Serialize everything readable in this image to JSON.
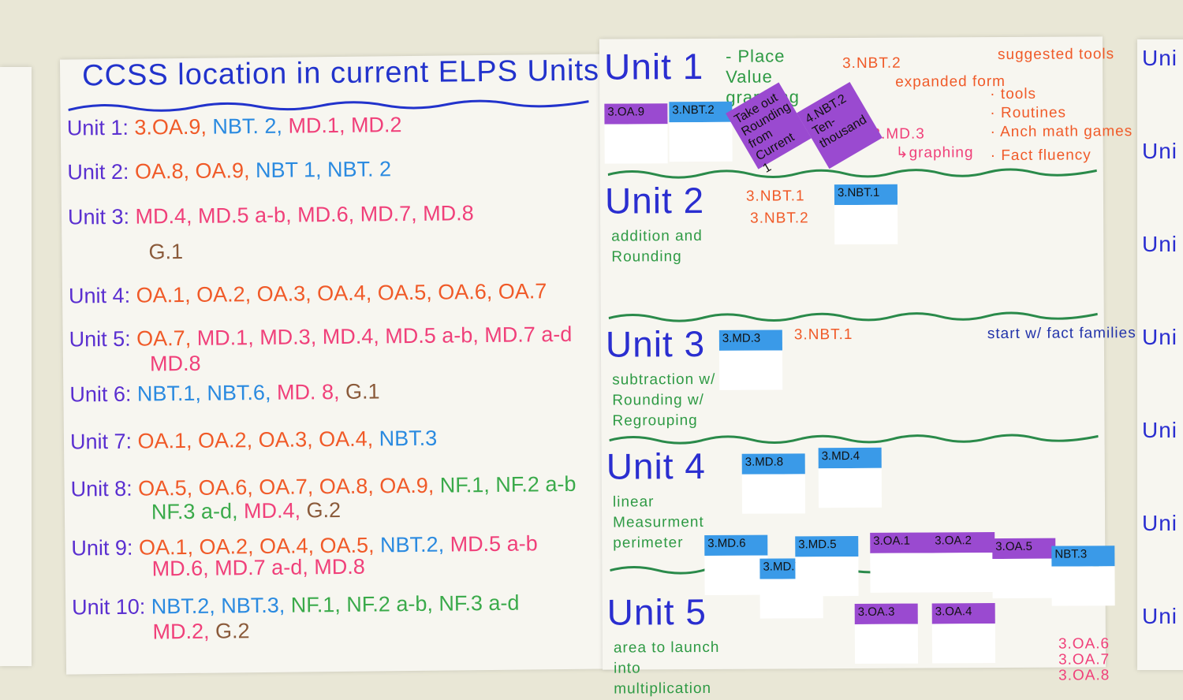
{
  "left": {
    "title": "CCSS location in current ELPS Units",
    "units": [
      {
        "label": "Unit 1:",
        "segs": [
          [
            "3.OA.9,",
            "#f05a28"
          ],
          [
            "NBT. 2,",
            "#2a8ae0"
          ],
          [
            "MD.1, MD.2",
            "#f0407a"
          ]
        ]
      },
      {
        "label": "Unit 2:",
        "segs": [
          [
            "OA.8, OA.9,",
            "#f05a28"
          ],
          [
            "NBT 1, NBT. 2",
            "#2a8ae0"
          ]
        ]
      },
      {
        "label": "Unit 3:",
        "segs": [
          [
            "MD.4, MD.5 a-b, MD.6, MD.7, MD.8",
            "#f0407a"
          ]
        ],
        "line2": [
          [
            "G.1",
            "#8a5a3a"
          ]
        ]
      },
      {
        "label": "Unit 4:",
        "segs": [
          [
            "OA.1, OA.2, OA.3, OA.4, OA.5, OA.6, OA.7",
            "#f05a28"
          ]
        ]
      },
      {
        "label": "Unit 5:",
        "segs": [
          [
            "OA.7,",
            "#f05a28"
          ],
          [
            "MD.1, MD.3, MD.4, MD.5 a-b, MD.7 a-d",
            "#f0407a"
          ]
        ],
        "line2": [
          [
            "MD.8",
            "#f0407a"
          ]
        ]
      },
      {
        "label": "Unit 6:",
        "segs": [
          [
            "NBT.1, NBT.6,",
            "#2a8ae0"
          ],
          [
            "MD. 8,",
            "#f0407a"
          ],
          [
            "G.1",
            "#8a5a3a"
          ]
        ]
      },
      {
        "label": "Unit 7:",
        "segs": [
          [
            "OA.1, OA.2, OA.3, OA.4,",
            "#f05a28"
          ],
          [
            "NBT.3",
            "#2a8ae0"
          ]
        ]
      },
      {
        "label": "Unit 8:",
        "segs": [
          [
            "OA.5, OA.6, OA.7, OA.8, OA.9,",
            "#f05a28"
          ],
          [
            "NF.1, NF.2 a-b",
            "#3aaa4a"
          ]
        ],
        "line2": [
          [
            "NF.3 a-d,",
            "#3aaa4a"
          ],
          [
            "MD.4,",
            "#f0407a"
          ],
          [
            "G.2",
            "#8a5a3a"
          ]
        ]
      },
      {
        "label": "Unit 9:",
        "segs": [
          [
            "OA.1, OA.2, OA.4, OA.5,",
            "#f05a28"
          ],
          [
            "NBT.2,",
            "#2a8ae0"
          ],
          [
            "MD.5 a-b",
            "#f0407a"
          ]
        ],
        "line2": [
          [
            "MD.6, MD.7 a-d, MD.8",
            "#f0407a"
          ]
        ]
      },
      {
        "label": "Unit 10:",
        "segs": [
          [
            "NBT.2, NBT.3,",
            "#2a8ae0"
          ],
          [
            "NF.1, NF.2 a-b, NF.3 a-d",
            "#3aaa4a"
          ]
        ],
        "line2": [
          [
            "MD.2,",
            "#f0407a"
          ],
          [
            "G.2",
            "#8a5a3a"
          ]
        ]
      }
    ]
  },
  "right": {
    "units": [
      {
        "label": "Unit 1",
        "sub": "- Place Value graphing",
        "notes": [
          [
            "3.NBT.2",
            "#f05a28"
          ],
          [
            "expanded form",
            "#f05a28"
          ],
          [
            "3.MD.3",
            "#f0407a"
          ],
          [
            "↳graphing",
            "#f0407a"
          ],
          [
            "suggested tools",
            "#f05a28"
          ],
          [
            "· tools",
            "#f05a28"
          ],
          [
            "· Routines",
            "#f05a28"
          ],
          [
            "· Anch math games",
            "#f05a28"
          ],
          [
            "· Fact fluency",
            "#f05a28"
          ]
        ],
        "stickies": [
          [
            "3.OA.9",
            "purple"
          ],
          [
            "3.NBT.2",
            "blue"
          ],
          [
            "Take out Rounding from Current 1",
            "solid"
          ],
          [
            "4.NBT.2 Ten-thousand",
            "solid"
          ]
        ]
      },
      {
        "label": "Unit 2",
        "sub": "addition and Rounding",
        "notes": [
          [
            "3.NBT.1",
            "#f05a28"
          ],
          [
            "3.NBT.2",
            "#f05a28"
          ]
        ],
        "stickies": [
          [
            "3.NBT.1",
            "blue"
          ]
        ]
      },
      {
        "label": "Unit 3",
        "sub": "subtraction w/ Rounding w/ Regrouping",
        "notes": [
          [
            "3.NBT.1",
            "#f05a28"
          ],
          [
            "start w/ fact families",
            "#2233aa"
          ]
        ],
        "stickies": [
          [
            "3.MD.3",
            "blue"
          ]
        ]
      },
      {
        "label": "Unit 4",
        "sub": "linear Measurment perimeter",
        "notes": [],
        "stickies": [
          [
            "3.MD.8",
            "blue"
          ],
          [
            "3.MD.4",
            "blue"
          ]
        ]
      },
      {
        "label": "Unit 5",
        "sub": "area to launch into multiplication",
        "notes": [
          [
            "3.OA.6",
            "#f0407a"
          ],
          [
            "3.OA.7",
            "#f0407a"
          ],
          [
            "3.OA.8",
            "#f0407a"
          ]
        ],
        "stickies": [
          [
            "3.MD.6",
            "blue"
          ],
          [
            "3.MD.7",
            "blue"
          ],
          [
            "3.MD.5",
            "blue"
          ],
          [
            "3.OA.1",
            "purple"
          ],
          [
            "3.OA.2",
            "purple"
          ],
          [
            "3.OA.5",
            "purple"
          ],
          [
            "NBT.3",
            "blue"
          ],
          [
            "3.OA.3",
            "purple"
          ],
          [
            "3.OA.4",
            "purple"
          ]
        ]
      }
    ]
  },
  "far": {
    "labels": [
      "Uni",
      "Uni",
      "Uni",
      "Uni",
      "Uni",
      "Uni",
      "Uni"
    ]
  }
}
